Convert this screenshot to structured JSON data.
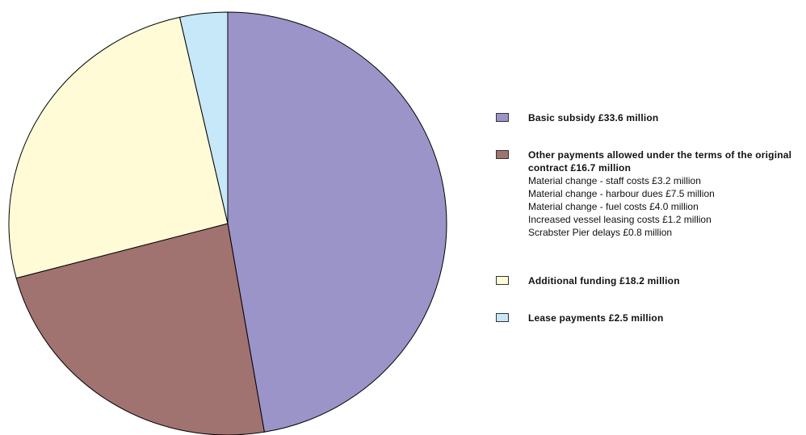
{
  "chart_data": {
    "type": "pie",
    "categories": [
      "Basic subsidy £33.6 million",
      "Other payments allowed under the terms of the original contract £16.7 million",
      "Additional funding £18.2 million",
      "Lease payments £2.5 million"
    ],
    "values": [
      33.6,
      16.7,
      18.2,
      2.5
    ],
    "colors": [
      "#9b94c9",
      "#a07270",
      "#fffbd6",
      "#c6e8f8"
    ],
    "legend_details": [
      "Material change - staff costs £3.2 million",
      "Material change - harbour dues £7.5 million",
      "Material change - fuel costs £4.0 million",
      "Increased vessel leasing costs £1.2 million",
      "Scrabster Pier delays £0.8 million"
    ]
  }
}
